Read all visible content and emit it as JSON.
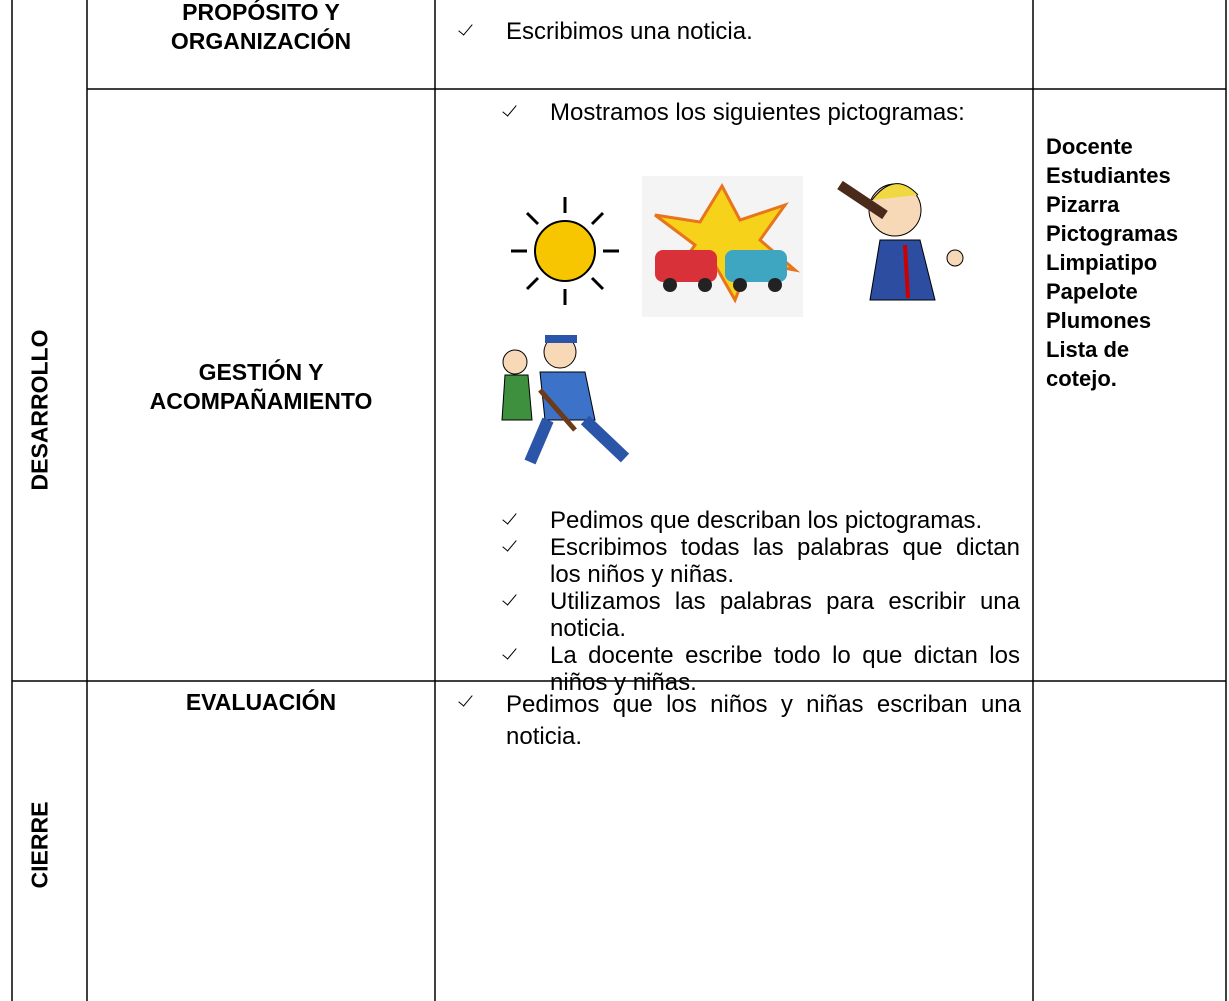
{
  "table": {
    "rows": [
      {
        "phase": "DESARROLLO",
        "stage": "PROPÓSITO Y ORGANIZACIÓN",
        "activities": [
          "Escribimos una noticia."
        ]
      },
      {
        "stage": "GESTIÓN Y ACOMPAÑAMIENTO",
        "intro": "Mostramos los siguientes pictogramas:",
        "activities": [
          "Pedimos que describan los pictogramas.",
          "Escribimos todas las palabras que dictan los niños y niñas.",
          "Utilizamos las palabras para escribir una noticia.",
          "La docente escribe todo lo que dictan los niños y niñas."
        ],
        "materials": [
          "Docente",
          "Estudiantes",
          "Pizarra",
          "Pictogramas",
          "Limpiatipo",
          "Papelote",
          "Plumones",
          "Lista de cotejo."
        ]
      },
      {
        "phase": "CIERRE",
        "stage": "EVALUACIÓN",
        "activities": [
          "Pedimos que los niños y niñas escriban una noticia."
        ]
      }
    ]
  }
}
